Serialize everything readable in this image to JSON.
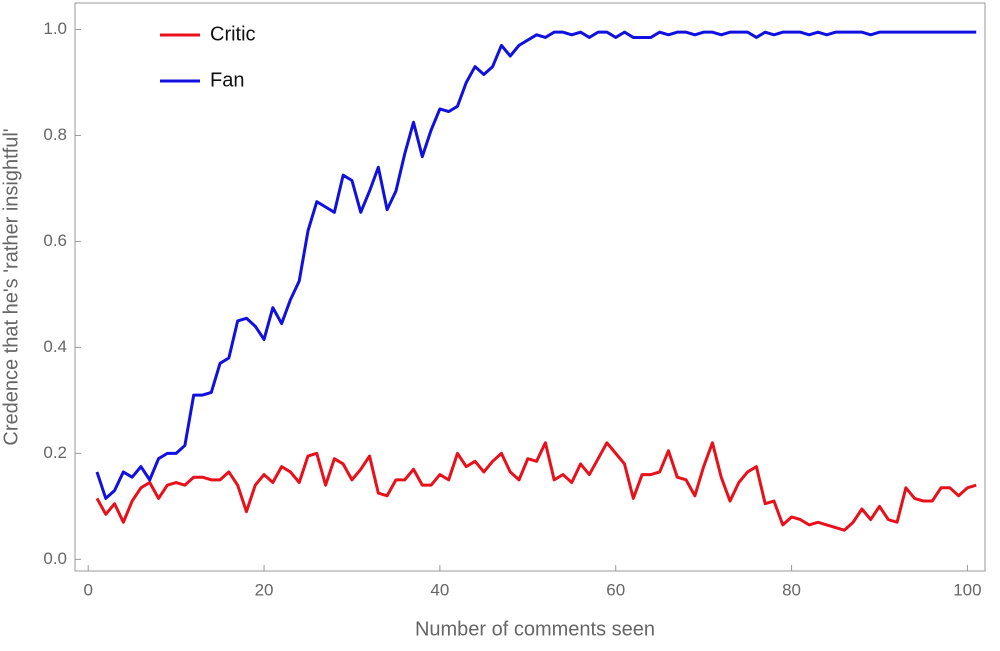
{
  "chart_data": {
    "type": "line",
    "xlabel": "Number of comments seen",
    "ylabel": "Credence that he's 'rather insightful'",
    "x": [
      1,
      2,
      3,
      4,
      5,
      6,
      7,
      8,
      9,
      10,
      11,
      12,
      13,
      14,
      15,
      16,
      17,
      18,
      19,
      20,
      21,
      22,
      23,
      24,
      25,
      26,
      27,
      28,
      29,
      30,
      31,
      32,
      33,
      34,
      35,
      36,
      37,
      38,
      39,
      40,
      41,
      42,
      43,
      44,
      45,
      46,
      47,
      48,
      49,
      50,
      51,
      52,
      53,
      54,
      55,
      56,
      57,
      58,
      59,
      60,
      61,
      62,
      63,
      64,
      65,
      66,
      67,
      68,
      69,
      70,
      71,
      72,
      73,
      74,
      75,
      76,
      77,
      78,
      79,
      80,
      81,
      82,
      83,
      84,
      85,
      86,
      87,
      88,
      89,
      90,
      91,
      92,
      93,
      94,
      95,
      96,
      97,
      98,
      99,
      100,
      101
    ],
    "series": [
      {
        "name": "Critic",
        "color": "#e8101a",
        "values": [
          0.115,
          0.085,
          0.105,
          0.07,
          0.11,
          0.135,
          0.145,
          0.115,
          0.14,
          0.145,
          0.14,
          0.155,
          0.155,
          0.15,
          0.15,
          0.165,
          0.14,
          0.09,
          0.14,
          0.16,
          0.145,
          0.175,
          0.165,
          0.145,
          0.195,
          0.2,
          0.14,
          0.19,
          0.18,
          0.15,
          0.17,
          0.195,
          0.125,
          0.12,
          0.15,
          0.15,
          0.17,
          0.14,
          0.14,
          0.16,
          0.15,
          0.2,
          0.175,
          0.185,
          0.165,
          0.185,
          0.2,
          0.165,
          0.15,
          0.19,
          0.185,
          0.22,
          0.15,
          0.16,
          0.145,
          0.18,
          0.16,
          0.19,
          0.22,
          0.2,
          0.18,
          0.115,
          0.16,
          0.16,
          0.165,
          0.205,
          0.155,
          0.15,
          0.12,
          0.175,
          0.22,
          0.155,
          0.11,
          0.145,
          0.165,
          0.175,
          0.105,
          0.11,
          0.065,
          0.08,
          0.075,
          0.065,
          0.07,
          0.065,
          0.06,
          0.055,
          0.07,
          0.095,
          0.075,
          0.1,
          0.075,
          0.07,
          0.135,
          0.115,
          0.11,
          0.11,
          0.135,
          0.135,
          0.12,
          0.135,
          0.14
        ]
      },
      {
        "name": "Fan",
        "color": "#1010e0",
        "values": [
          0.165,
          0.115,
          0.13,
          0.165,
          0.155,
          0.175,
          0.15,
          0.19,
          0.2,
          0.2,
          0.215,
          0.31,
          0.31,
          0.315,
          0.37,
          0.38,
          0.45,
          0.455,
          0.44,
          0.415,
          0.475,
          0.445,
          0.49,
          0.525,
          0.62,
          0.675,
          0.665,
          0.655,
          0.725,
          0.715,
          0.655,
          0.695,
          0.74,
          0.66,
          0.695,
          0.765,
          0.825,
          0.76,
          0.81,
          0.85,
          0.845,
          0.855,
          0.9,
          0.93,
          0.915,
          0.93,
          0.97,
          0.95,
          0.97,
          0.98,
          0.99,
          0.985,
          0.995,
          0.995,
          0.99,
          0.995,
          0.985,
          0.995,
          0.995,
          0.985,
          0.995,
          0.985,
          0.985,
          0.985,
          0.995,
          0.99,
          0.995,
          0.995,
          0.99,
          0.995,
          0.995,
          0.99,
          0.995,
          0.995,
          0.995,
          0.985,
          0.995,
          0.99,
          0.995,
          0.995,
          0.995,
          0.99,
          0.995,
          0.99,
          0.995,
          0.995,
          0.995,
          0.995,
          0.99,
          0.995,
          0.995,
          0.995,
          0.995,
          0.995,
          0.995,
          0.995,
          0.995,
          0.995,
          0.995,
          0.995,
          0.995
        ]
      }
    ],
    "xlim": [
      -1.5,
      102
    ],
    "xticks": [
      0,
      20,
      40,
      60,
      80,
      100
    ],
    "ylim": [
      -0.022,
      1.05
    ],
    "yticks": [
      {
        "value": 0,
        "label": "0.0"
      },
      {
        "value": 0.2,
        "label": "0.2"
      },
      {
        "value": 0.4,
        "label": "0.4"
      },
      {
        "value": 0.6,
        "label": "0.6"
      },
      {
        "value": 0.8,
        "label": "0.8"
      },
      {
        "value": 1,
        "label": "1.0"
      }
    ],
    "legend": "upper left"
  }
}
